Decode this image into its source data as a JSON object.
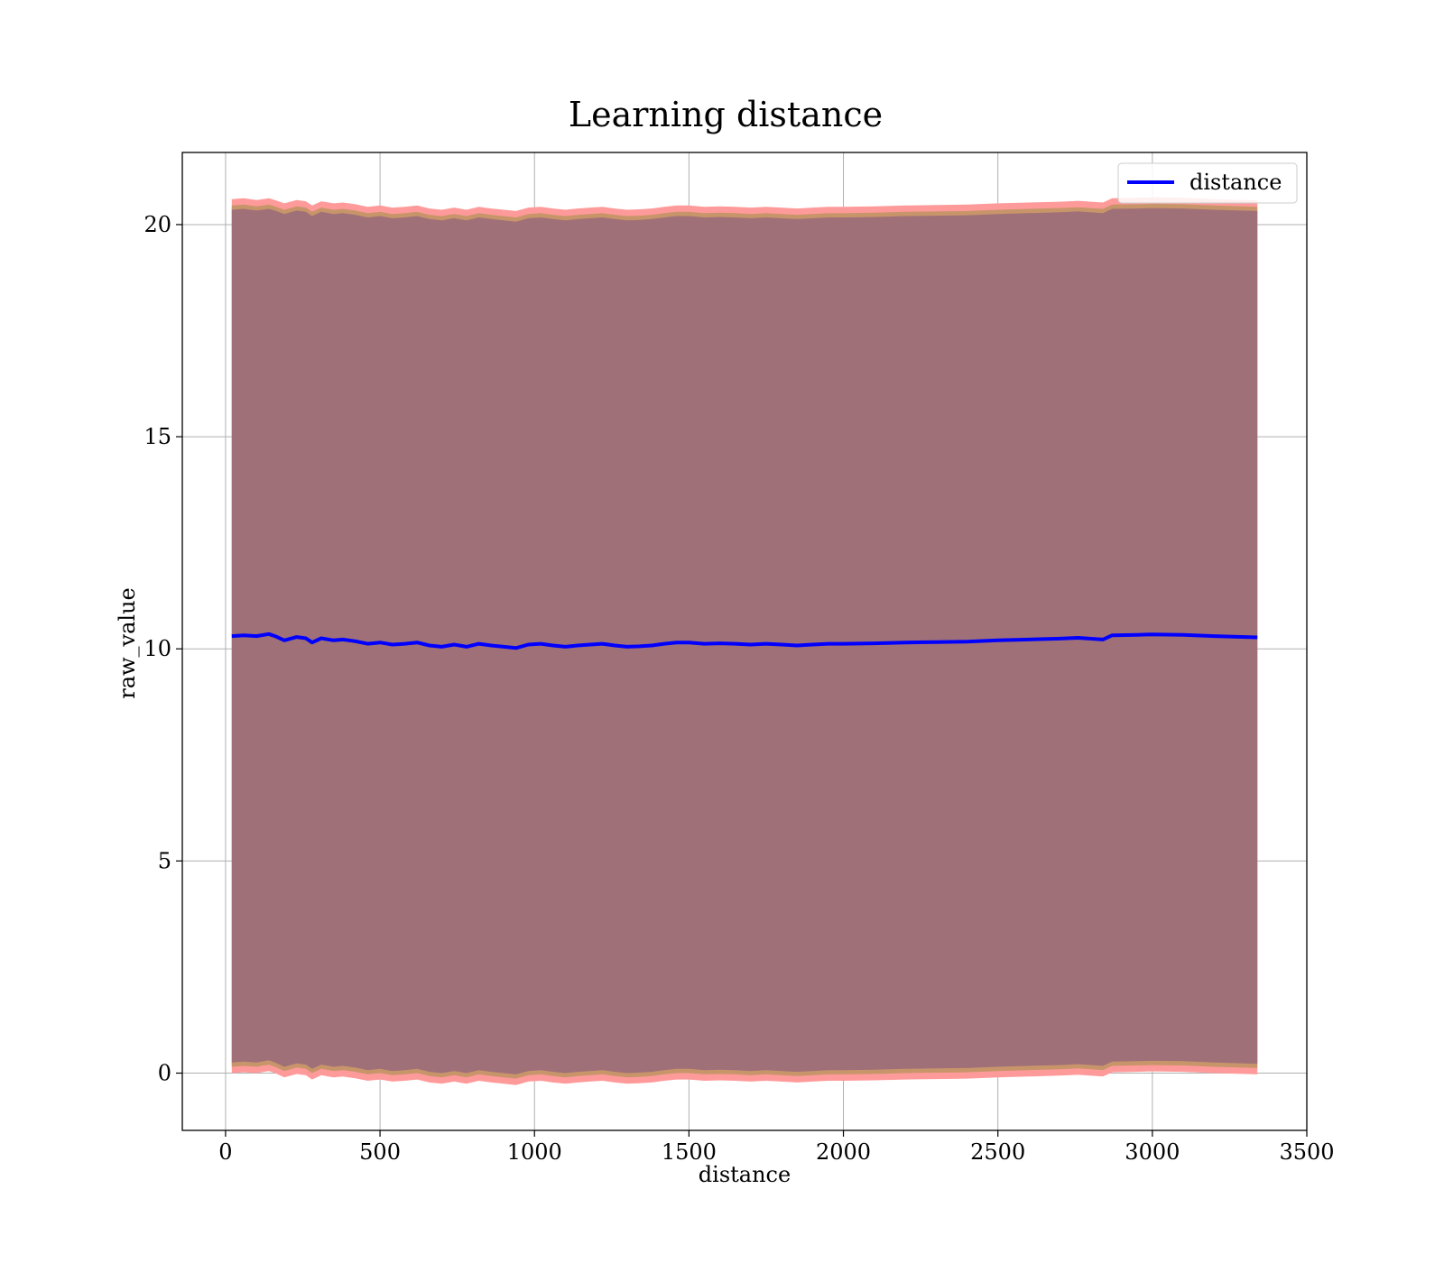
{
  "chart_data": {
    "type": "line",
    "title": "Learning distance",
    "xlabel": "distance",
    "ylabel": "raw_value",
    "xlim": [
      -140,
      3500
    ],
    "ylim": [
      -1.35,
      21.7
    ],
    "xticks": [
      0,
      500,
      1000,
      1500,
      2000,
      2500,
      3000,
      3500
    ],
    "yticks": [
      0,
      5,
      10,
      15,
      20
    ],
    "xtick_labels": [
      "0",
      "500",
      "1000",
      "1500",
      "2000",
      "2500",
      "3000",
      "3500"
    ],
    "ytick_labels": [
      "0",
      "5",
      "10",
      "15",
      "20"
    ],
    "grid": true,
    "legend": {
      "position": "top-right",
      "entries": [
        "distance"
      ]
    },
    "colors": {
      "line": "#0000ff",
      "band_outer": "#ff9a9a",
      "band_middle": "#c8956a",
      "band_inner": "#a07078",
      "grid": "#b0b0b0"
    },
    "series": [
      {
        "name": "distance",
        "x": [
          20,
          60,
          100,
          140,
          160,
          190,
          230,
          260,
          280,
          310,
          350,
          380,
          420,
          460,
          500,
          540,
          580,
          620,
          660,
          700,
          740,
          780,
          820,
          860,
          900,
          940,
          980,
          1020,
          1060,
          1100,
          1140,
          1180,
          1220,
          1260,
          1300,
          1340,
          1380,
          1420,
          1460,
          1500,
          1550,
          1600,
          1650,
          1700,
          1750,
          1800,
          1850,
          1900,
          1950,
          2000,
          2100,
          2200,
          2300,
          2400,
          2500,
          2600,
          2700,
          2760,
          2840,
          2870,
          2950,
          3000,
          3100,
          3200,
          3340
        ],
        "y": [
          10.3,
          10.32,
          10.3,
          10.35,
          10.3,
          10.2,
          10.28,
          10.25,
          10.15,
          10.25,
          10.2,
          10.22,
          10.18,
          10.12,
          10.15,
          10.1,
          10.12,
          10.15,
          10.08,
          10.05,
          10.1,
          10.05,
          10.12,
          10.08,
          10.05,
          10.02,
          10.1,
          10.12,
          10.08,
          10.05,
          10.08,
          10.1,
          10.12,
          10.08,
          10.05,
          10.06,
          10.08,
          10.12,
          10.15,
          10.15,
          10.12,
          10.13,
          10.12,
          10.1,
          10.12,
          10.1,
          10.08,
          10.1,
          10.12,
          10.12,
          10.13,
          10.15,
          10.16,
          10.17,
          10.2,
          10.22,
          10.24,
          10.26,
          10.22,
          10.32,
          10.33,
          10.34,
          10.33,
          10.3,
          10.27
        ]
      }
    ],
    "band": {
      "outer_upper": [
        20.6,
        20.62,
        20.58,
        20.62,
        20.58,
        20.5,
        20.58,
        20.55,
        20.45,
        20.55,
        20.5,
        20.52,
        20.48,
        20.42,
        20.45,
        20.4,
        20.42,
        20.45,
        20.38,
        20.35,
        20.4,
        20.35,
        20.42,
        20.38,
        20.35,
        20.32,
        20.4,
        20.42,
        20.38,
        20.35,
        20.38,
        20.4,
        20.42,
        20.38,
        20.35,
        20.36,
        20.38,
        20.42,
        20.45,
        20.45,
        20.42,
        20.43,
        20.42,
        20.4,
        20.42,
        20.4,
        20.38,
        20.4,
        20.42,
        20.42,
        20.43,
        20.45,
        20.46,
        20.47,
        20.5,
        20.52,
        20.54,
        20.56,
        20.52,
        20.62,
        20.63,
        20.64,
        20.63,
        20.6,
        20.57
      ],
      "outer_lower": [
        0.0,
        0.02,
        0.0,
        0.05,
        0.0,
        -0.1,
        -0.02,
        -0.05,
        -0.15,
        -0.05,
        -0.1,
        -0.08,
        -0.12,
        -0.18,
        -0.15,
        -0.2,
        -0.18,
        -0.15,
        -0.22,
        -0.25,
        -0.2,
        -0.25,
        -0.18,
        -0.22,
        -0.25,
        -0.28,
        -0.2,
        -0.18,
        -0.22,
        -0.25,
        -0.22,
        -0.2,
        -0.18,
        -0.22,
        -0.25,
        -0.24,
        -0.22,
        -0.18,
        -0.15,
        -0.15,
        -0.18,
        -0.17,
        -0.18,
        -0.2,
        -0.18,
        -0.2,
        -0.22,
        -0.2,
        -0.18,
        -0.18,
        -0.17,
        -0.15,
        -0.14,
        -0.13,
        -0.1,
        -0.08,
        -0.06,
        -0.04,
        -0.08,
        0.02,
        0.03,
        0.04,
        0.03,
        0.0,
        -0.03
      ],
      "middle_upper": [
        20.45,
        20.47,
        20.43,
        20.47,
        20.43,
        20.35,
        20.43,
        20.4,
        20.3,
        20.4,
        20.35,
        20.37,
        20.33,
        20.27,
        20.3,
        20.25,
        20.27,
        20.3,
        20.23,
        20.2,
        20.25,
        20.2,
        20.27,
        20.23,
        20.2,
        20.17,
        20.25,
        20.27,
        20.23,
        20.2,
        20.23,
        20.25,
        20.27,
        20.23,
        20.2,
        20.21,
        20.23,
        20.27,
        20.3,
        20.3,
        20.27,
        20.28,
        20.27,
        20.25,
        20.27,
        20.25,
        20.23,
        20.25,
        20.27,
        20.27,
        20.28,
        20.3,
        20.31,
        20.32,
        20.35,
        20.37,
        20.39,
        20.41,
        20.37,
        20.47,
        20.48,
        20.49,
        20.48,
        20.45,
        20.42
      ],
      "middle_lower": [
        0.15,
        0.17,
        0.15,
        0.2,
        0.15,
        0.05,
        0.13,
        0.1,
        0.0,
        0.1,
        0.05,
        0.07,
        0.03,
        -0.03,
        0.0,
        -0.05,
        -0.03,
        0.0,
        -0.07,
        -0.1,
        -0.05,
        -0.1,
        -0.03,
        -0.07,
        -0.1,
        -0.13,
        -0.05,
        -0.03,
        -0.07,
        -0.1,
        -0.07,
        -0.05,
        -0.03,
        -0.07,
        -0.1,
        -0.09,
        -0.07,
        -0.03,
        0.0,
        0.0,
        -0.03,
        -0.02,
        -0.03,
        -0.05,
        -0.03,
        -0.05,
        -0.07,
        -0.05,
        -0.03,
        -0.03,
        -0.02,
        0.0,
        0.01,
        0.02,
        0.05,
        0.07,
        0.09,
        0.11,
        0.07,
        0.17,
        0.18,
        0.19,
        0.18,
        0.15,
        0.12
      ],
      "inner_upper": [
        20.35,
        20.37,
        20.33,
        20.37,
        20.33,
        20.25,
        20.33,
        20.3,
        20.2,
        20.3,
        20.25,
        20.27,
        20.23,
        20.17,
        20.2,
        20.15,
        20.17,
        20.2,
        20.13,
        20.1,
        20.15,
        20.1,
        20.17,
        20.13,
        20.1,
        20.07,
        20.15,
        20.17,
        20.13,
        20.1,
        20.13,
        20.15,
        20.17,
        20.13,
        20.1,
        20.11,
        20.13,
        20.17,
        20.2,
        20.2,
        20.17,
        20.18,
        20.17,
        20.15,
        20.17,
        20.15,
        20.13,
        20.15,
        20.17,
        20.17,
        20.18,
        20.2,
        20.21,
        20.22,
        20.25,
        20.27,
        20.29,
        20.31,
        20.27,
        20.37,
        20.38,
        20.39,
        20.38,
        20.35,
        20.32
      ],
      "inner_lower": [
        0.25,
        0.27,
        0.25,
        0.3,
        0.25,
        0.15,
        0.23,
        0.2,
        0.1,
        0.2,
        0.15,
        0.17,
        0.13,
        0.07,
        0.1,
        0.05,
        0.07,
        0.1,
        0.03,
        0.0,
        0.05,
        0.0,
        0.07,
        0.03,
        0.0,
        -0.03,
        0.05,
        0.07,
        0.03,
        0.0,
        0.03,
        0.05,
        0.07,
        0.03,
        0.0,
        0.01,
        0.03,
        0.07,
        0.1,
        0.1,
        0.07,
        0.08,
        0.07,
        0.05,
        0.07,
        0.05,
        0.03,
        0.05,
        0.07,
        0.07,
        0.08,
        0.1,
        0.11,
        0.12,
        0.15,
        0.17,
        0.19,
        0.21,
        0.17,
        0.27,
        0.28,
        0.29,
        0.28,
        0.25,
        0.22
      ]
    }
  }
}
